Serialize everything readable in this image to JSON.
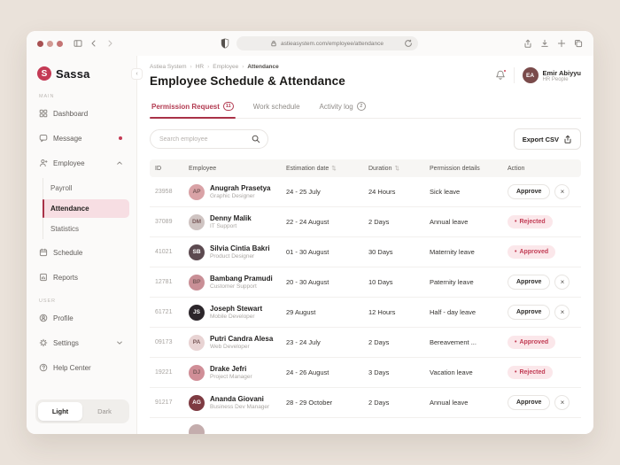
{
  "browser": {
    "url": "astieasystem.com/employee/attendance",
    "traffic_light_colors": [
      "#a85052",
      "#d29a94",
      "#c47474"
    ],
    "lock_icon": "lock-icon",
    "refresh_icon": "refresh-icon"
  },
  "colors": {
    "accent": "#b23a50",
    "tab_underline": "#a93248",
    "sidebar_active_bg": "#f7dee3",
    "status_badge_bg": "#fbe7ea",
    "status_badge_text": "#c23d55",
    "canvas_bg": "#eae2da"
  },
  "sidebar": {
    "logo_text": "Sassa",
    "logo_initial": "S",
    "section_main": "MAIN",
    "section_user": "USER",
    "main_items": [
      {
        "label": "Dashboard",
        "icon": "dashboard-icon"
      },
      {
        "label": "Message",
        "icon": "message-icon",
        "dot": true
      },
      {
        "label": "Employee",
        "icon": "employee-icon",
        "chevron": "up"
      }
    ],
    "employee_subitems": [
      {
        "label": "Payroll"
      },
      {
        "label": "Attendance",
        "active": true
      },
      {
        "label": "Statistics"
      }
    ],
    "secondary_items": [
      {
        "label": "Schedule",
        "icon": "schedule-icon"
      },
      {
        "label": "Reports",
        "icon": "reports-icon"
      }
    ],
    "user_items": [
      {
        "label": "Profile",
        "icon": "profile-icon"
      },
      {
        "label": "Settings",
        "icon": "settings-icon",
        "chevron": "down"
      },
      {
        "label": "Help Center",
        "icon": "help-icon"
      }
    ],
    "theme_toggle": {
      "light": "Light",
      "dark": "Dark",
      "selected": "Light"
    }
  },
  "header": {
    "breadcrumb": [
      "Astiea System",
      "HR",
      "Employee",
      "Attendance"
    ],
    "title": "Employee Schedule & Attendance",
    "bell_icon": "bell-icon",
    "user": {
      "name": "Emir Abiyyu",
      "role": "HR People",
      "initials": "EA",
      "avatar_color": "#7a4b4b"
    }
  },
  "tabs": [
    {
      "label": "Permission Request",
      "badge": "11",
      "active": true
    },
    {
      "label": "Work schedule"
    },
    {
      "label": "Activity log",
      "badge": "2"
    }
  ],
  "toolbar": {
    "search_placeholder": "Search employee",
    "search_icon": "search-icon",
    "export_label": "Export CSV",
    "export_icon": "export-icon"
  },
  "table": {
    "headers": [
      {
        "label": "ID"
      },
      {
        "label": "Employee"
      },
      {
        "label": "Estimation date",
        "sortable": true
      },
      {
        "label": "Duration",
        "sortable": true
      },
      {
        "label": "Permission details"
      },
      {
        "label": "Action"
      }
    ],
    "approve_label": "Approve",
    "status_labels": {
      "approved": "Approved",
      "rejected": "Rejected"
    },
    "rows": [
      {
        "id": "23958",
        "name": "Anugrah Prasetya",
        "role": "Graphic Designer",
        "initials": "AP",
        "avatar_color": "#d9a2a6",
        "date": "24 - 25 July",
        "duration": "24 Hours",
        "permission": "Sick leave",
        "action": "pending"
      },
      {
        "id": "37089",
        "name": "Denny Malik",
        "role": "IT Support",
        "initials": "DM",
        "avatar_color": "#cfc4c2",
        "date": "22 - 24 August",
        "duration": "2 Days",
        "permission": "Annual leave",
        "action": "rejected"
      },
      {
        "id": "41021",
        "name": "Silvia Cintia Bakri",
        "role": "Product Designer",
        "initials": "SB",
        "avatar_color": "#5c4a50",
        "date": "01 - 30 August",
        "duration": "30 Days",
        "permission": "Maternity leave",
        "action": "approved"
      },
      {
        "id": "12781",
        "name": "Bambang Pramudi",
        "role": "Customer Support",
        "initials": "BP",
        "avatar_color": "#c98f96",
        "date": "20 - 30 August",
        "duration": "10 Days",
        "permission": "Paternity leave",
        "action": "pending"
      },
      {
        "id": "61721",
        "name": "Joseph Stewart",
        "role": "Mobile Developer",
        "initials": "JS",
        "avatar_color": "#2c262b",
        "date": "29 August",
        "duration": "12 Hours",
        "permission": "Half - day leave",
        "action": "pending"
      },
      {
        "id": "09173",
        "name": "Putri Candra Alesa",
        "role": "Web Developer",
        "initials": "PA",
        "avatar_color": "#e8d3d3",
        "date": "23 - 24 July",
        "duration": "2 Days",
        "permission": "Bereavement ...",
        "action": "approved"
      },
      {
        "id": "19221",
        "name": "Drake Jefri",
        "role": "Project Manager",
        "initials": "DJ",
        "avatar_color": "#d08e97",
        "date": "24 - 26 August",
        "duration": "3 Days",
        "permission": "Vacation leave",
        "action": "rejected"
      },
      {
        "id": "91217",
        "name": "Ananda Giovani",
        "role": "Business Dev Manager",
        "initials": "AG",
        "avatar_color": "#7e3b42",
        "date": "28 - 29 October",
        "duration": "2 Days",
        "permission": "Annual leave",
        "action": "pending"
      }
    ],
    "partial_row": {
      "avatar_color": "#c4adad"
    }
  }
}
